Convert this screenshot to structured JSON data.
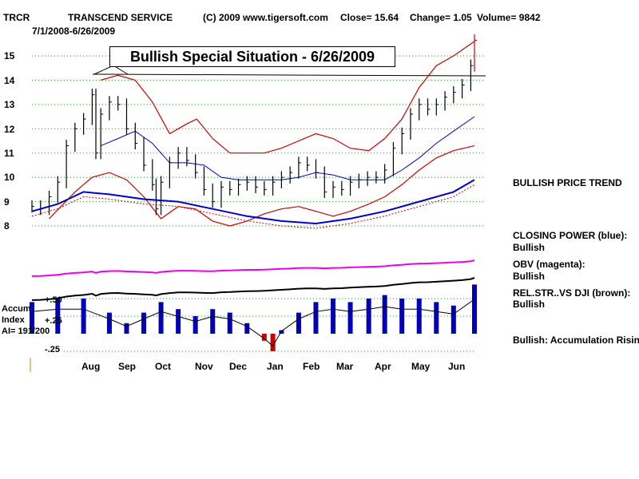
{
  "header": {
    "symbol": "TRCR",
    "company": "TRANSCEND SERVICE",
    "copyright": "(C) 2009 www.tigersoft.com",
    "close": "Close=  15.64",
    "change": "Change= 1.05",
    "volume": "Volume= 9842",
    "date_range": "7/1/2008-6/26/2009"
  },
  "banner": "Bullish Special Situation - 6/26/2009",
  "side_labels": {
    "price_trend": "BULLISH PRICE TREND",
    "closing_power_1": "CLOSING POWER (blue):",
    "closing_power_2": "Bullish",
    "obv_1": "OBV (magenta):",
    "obv_2": "Bullish",
    "relstr_1": "REL.STR..VS DJI (brown):",
    "relstr_2": "Bullish",
    "accum": "Bullish: Accumulation Rising"
  },
  "accum_labels": {
    "line1": "Accum",
    "line2": "Index",
    "line3": "AI= 191/200",
    "p50": "+.50",
    "p25": "+.25",
    "m25": "-.25"
  },
  "colors": {
    "price_bars": "#000000",
    "bands": "#cc0000",
    "moving_average": "#0000cc",
    "closing_power": "#0000cc",
    "obv": "#ee00ee",
    "rel_strength": "#000000",
    "accum_up": "#0000bb",
    "accum_down": "#cc0000"
  },
  "chart_data": {
    "type": "line",
    "y_ticks": [
      "15",
      "14",
      "13",
      "12",
      "11",
      "10",
      "9",
      "8"
    ],
    "y_tick_values": [
      15,
      14,
      13,
      12,
      11,
      10,
      9,
      8
    ],
    "x_ticks": [
      "Aug",
      "Sep",
      "Oct",
      "Nov",
      "Dec",
      "Jan",
      "Feb",
      "Mar",
      "Apr",
      "May",
      "Jun"
    ],
    "x_tick_dates": [
      "2008-08-01",
      "2008-09-01",
      "2008-10-01",
      "2008-11-01",
      "2008-12-01",
      "2009-01-01",
      "2009-02-01",
      "2009-03-01",
      "2009-04-01",
      "2009-05-01",
      "2009-06-01"
    ],
    "x_range": [
      "2008-07-01",
      "2009-06-26"
    ],
    "ylim": [
      7.8,
      15.8
    ],
    "grid": true,
    "resistance_level": 14.2,
    "close_series": [
      {
        "date": "2008-07-01",
        "close": 8.8
      },
      {
        "date": "2008-07-08",
        "close": 8.7
      },
      {
        "date": "2008-07-15",
        "close": 9.2
      },
      {
        "date": "2008-07-22",
        "close": 9.8
      },
      {
        "date": "2008-07-29",
        "close": 11.3
      },
      {
        "date": "2008-08-05",
        "close": 12.0
      },
      {
        "date": "2008-08-12",
        "close": 12.4
      },
      {
        "date": "2008-08-19",
        "close": 13.4
      },
      {
        "date": "2008-08-22",
        "close": 11.0
      },
      {
        "date": "2008-08-26",
        "close": 12.6
      },
      {
        "date": "2008-09-02",
        "close": 13.1
      },
      {
        "date": "2008-09-09",
        "close": 13.0
      },
      {
        "date": "2008-09-16",
        "close": 12.0
      },
      {
        "date": "2008-09-23",
        "close": 11.4
      },
      {
        "date": "2008-09-30",
        "close": 10.5
      },
      {
        "date": "2008-10-07",
        "close": 9.7
      },
      {
        "date": "2008-10-10",
        "close": 8.7
      },
      {
        "date": "2008-10-14",
        "close": 9.8
      },
      {
        "date": "2008-10-21",
        "close": 10.6
      },
      {
        "date": "2008-10-28",
        "close": 11.0
      },
      {
        "date": "2008-11-04",
        "close": 10.7
      },
      {
        "date": "2008-11-11",
        "close": 10.2
      },
      {
        "date": "2008-11-18",
        "close": 9.5
      },
      {
        "date": "2008-11-25",
        "close": 9.0
      },
      {
        "date": "2008-12-02",
        "close": 9.6
      },
      {
        "date": "2008-12-09",
        "close": 9.5
      },
      {
        "date": "2008-12-16",
        "close": 9.7
      },
      {
        "date": "2008-12-23",
        "close": 9.8
      },
      {
        "date": "2008-12-30",
        "close": 9.6
      },
      {
        "date": "2009-01-06",
        "close": 9.5
      },
      {
        "date": "2009-01-13",
        "close": 9.8
      },
      {
        "date": "2009-01-20",
        "close": 10.0
      },
      {
        "date": "2009-01-27",
        "close": 10.2
      },
      {
        "date": "2009-02-03",
        "close": 10.6
      },
      {
        "date": "2009-02-10",
        "close": 10.5
      },
      {
        "date": "2009-02-17",
        "close": 10.2
      },
      {
        "date": "2009-02-24",
        "close": 9.4
      },
      {
        "date": "2009-03-03",
        "close": 9.6
      },
      {
        "date": "2009-03-10",
        "close": 9.5
      },
      {
        "date": "2009-03-17",
        "close": 9.8
      },
      {
        "date": "2009-03-24",
        "close": 9.9
      },
      {
        "date": "2009-03-31",
        "close": 10.0
      },
      {
        "date": "2009-04-07",
        "close": 10.0
      },
      {
        "date": "2009-04-14",
        "close": 10.3
      },
      {
        "date": "2009-04-21",
        "close": 11.2
      },
      {
        "date": "2009-04-28",
        "close": 11.8
      },
      {
        "date": "2009-05-05",
        "close": 12.6
      },
      {
        "date": "2009-05-12",
        "close": 13.0
      },
      {
        "date": "2009-05-19",
        "close": 12.8
      },
      {
        "date": "2009-05-26",
        "close": 13.0
      },
      {
        "date": "2009-06-02",
        "close": 13.3
      },
      {
        "date": "2009-06-09",
        "close": 13.5
      },
      {
        "date": "2009-06-16",
        "close": 13.8
      },
      {
        "date": "2009-06-23",
        "close": 14.6
      },
      {
        "date": "2009-06-26",
        "close": 15.64
      }
    ],
    "moving_average": [
      {
        "date": "2008-08-26",
        "value": 11.3
      },
      {
        "date": "2008-09-09",
        "value": 11.6
      },
      {
        "date": "2008-09-23",
        "value": 11.9
      },
      {
        "date": "2008-10-07",
        "value": 11.4
      },
      {
        "date": "2008-10-21",
        "value": 10.6
      },
      {
        "date": "2008-11-04",
        "value": 10.6
      },
      {
        "date": "2008-11-18",
        "value": 10.5
      },
      {
        "date": "2008-12-02",
        "value": 10.0
      },
      {
        "date": "2008-12-16",
        "value": 9.9
      },
      {
        "date": "2009-01-06",
        "value": 9.9
      },
      {
        "date": "2009-01-20",
        "value": 9.9
      },
      {
        "date": "2009-02-03",
        "value": 10.0
      },
      {
        "date": "2009-02-17",
        "value": 10.2
      },
      {
        "date": "2009-03-03",
        "value": 10.1
      },
      {
        "date": "2009-03-17",
        "value": 9.9
      },
      {
        "date": "2009-04-01",
        "value": 9.9
      },
      {
        "date": "2009-04-14",
        "value": 9.9
      },
      {
        "date": "2009-04-28",
        "value": 10.3
      },
      {
        "date": "2009-05-12",
        "value": 10.8
      },
      {
        "date": "2009-05-26",
        "value": 11.4
      },
      {
        "date": "2009-06-09",
        "value": 11.9
      },
      {
        "date": "2009-06-26",
        "value": 12.5
      }
    ],
    "upper_band": [
      {
        "date": "2008-08-26",
        "value": 14.0
      },
      {
        "date": "2008-09-09",
        "value": 14.2
      },
      {
        "date": "2008-09-23",
        "value": 14.0
      },
      {
        "date": "2008-10-07",
        "value": 13.1
      },
      {
        "date": "2008-10-21",
        "value": 11.8
      },
      {
        "date": "2008-11-04",
        "value": 12.2
      },
      {
        "date": "2008-11-12",
        "value": 12.4
      },
      {
        "date": "2008-11-25",
        "value": 11.6
      },
      {
        "date": "2008-12-09",
        "value": 11.0
      },
      {
        "date": "2008-12-23",
        "value": 11.0
      },
      {
        "date": "2009-01-06",
        "value": 11.0
      },
      {
        "date": "2009-01-20",
        "value": 11.2
      },
      {
        "date": "2009-02-03",
        "value": 11.5
      },
      {
        "date": "2009-02-17",
        "value": 11.8
      },
      {
        "date": "2009-03-03",
        "value": 11.6
      },
      {
        "date": "2009-03-17",
        "value": 11.2
      },
      {
        "date": "2009-04-01",
        "value": 11.1
      },
      {
        "date": "2009-04-14",
        "value": 11.6
      },
      {
        "date": "2009-04-28",
        "value": 12.4
      },
      {
        "date": "2009-05-12",
        "value": 13.7
      },
      {
        "date": "2009-05-26",
        "value": 14.6
      },
      {
        "date": "2009-06-09",
        "value": 15.0
      },
      {
        "date": "2009-06-26",
        "value": 15.6
      }
    ],
    "lower_band": [
      {
        "date": "2008-07-15",
        "value": 8.3
      },
      {
        "date": "2008-08-05",
        "value": 9.4
      },
      {
        "date": "2008-08-19",
        "value": 10.0
      },
      {
        "date": "2008-09-02",
        "value": 10.2
      },
      {
        "date": "2008-09-16",
        "value": 9.9
      },
      {
        "date": "2008-09-30",
        "value": 9.2
      },
      {
        "date": "2008-10-14",
        "value": 8.3
      },
      {
        "date": "2008-10-28",
        "value": 8.8
      },
      {
        "date": "2008-11-11",
        "value": 8.7
      },
      {
        "date": "2008-11-25",
        "value": 8.2
      },
      {
        "date": "2008-12-09",
        "value": 8.0
      },
      {
        "date": "2008-12-23",
        "value": 8.2
      },
      {
        "date": "2009-01-06",
        "value": 8.5
      },
      {
        "date": "2009-01-20",
        "value": 8.7
      },
      {
        "date": "2009-02-03",
        "value": 8.8
      },
      {
        "date": "2009-02-17",
        "value": 8.6
      },
      {
        "date": "2009-03-03",
        "value": 8.4
      },
      {
        "date": "2009-03-17",
        "value": 8.6
      },
      {
        "date": "2009-04-01",
        "value": 8.9
      },
      {
        "date": "2009-04-14",
        "value": 9.2
      },
      {
        "date": "2009-04-28",
        "value": 9.7
      },
      {
        "date": "2009-05-12",
        "value": 10.3
      },
      {
        "date": "2009-05-26",
        "value": 10.8
      },
      {
        "date": "2009-06-09",
        "value": 11.1
      },
      {
        "date": "2009-06-26",
        "value": 11.3
      }
    ],
    "closing_power": [
      {
        "date": "2008-07-01",
        "value": 8.6
      },
      {
        "date": "2008-07-22",
        "value": 8.9
      },
      {
        "date": "2008-08-12",
        "value": 9.4
      },
      {
        "date": "2008-09-02",
        "value": 9.3
      },
      {
        "date": "2008-09-30",
        "value": 9.1
      },
      {
        "date": "2008-10-28",
        "value": 9.0
      },
      {
        "date": "2008-11-25",
        "value": 8.7
      },
      {
        "date": "2008-12-23",
        "value": 8.4
      },
      {
        "date": "2009-01-20",
        "value": 8.2
      },
      {
        "date": "2009-02-17",
        "value": 8.1
      },
      {
        "date": "2009-03-17",
        "value": 8.3
      },
      {
        "date": "2009-04-14",
        "value": 8.6
      },
      {
        "date": "2009-05-12",
        "value": 9.0
      },
      {
        "date": "2009-06-09",
        "value": 9.4
      },
      {
        "date": "2009-06-26",
        "value": 9.9
      }
    ],
    "accum_index": [
      {
        "date": "2008-07-01",
        "value": 0.45
      },
      {
        "date": "2008-07-22",
        "value": 0.5
      },
      {
        "date": "2008-08-12",
        "value": 0.5
      },
      {
        "date": "2008-09-02",
        "value": 0.3
      },
      {
        "date": "2008-09-16",
        "value": 0.15
      },
      {
        "date": "2008-09-30",
        "value": 0.3
      },
      {
        "date": "2008-10-14",
        "value": 0.45
      },
      {
        "date": "2008-10-28",
        "value": 0.35
      },
      {
        "date": "2008-11-11",
        "value": 0.25
      },
      {
        "date": "2008-11-25",
        "value": 0.35
      },
      {
        "date": "2008-12-09",
        "value": 0.3
      },
      {
        "date": "2008-12-23",
        "value": 0.15
      },
      {
        "date": "2009-01-06",
        "value": -0.1
      },
      {
        "date": "2009-01-13",
        "value": -0.25
      },
      {
        "date": "2009-01-20",
        "value": 0.05
      },
      {
        "date": "2009-02-03",
        "value": 0.3
      },
      {
        "date": "2009-02-17",
        "value": 0.45
      },
      {
        "date": "2009-03-03",
        "value": 0.5
      },
      {
        "date": "2009-03-17",
        "value": 0.45
      },
      {
        "date": "2009-04-01",
        "value": 0.5
      },
      {
        "date": "2009-04-14",
        "value": 0.55
      },
      {
        "date": "2009-04-28",
        "value": 0.5
      },
      {
        "date": "2009-05-12",
        "value": 0.5
      },
      {
        "date": "2009-05-26",
        "value": 0.45
      },
      {
        "date": "2009-06-09",
        "value": 0.4
      },
      {
        "date": "2009-06-26",
        "value": 0.7
      }
    ]
  }
}
